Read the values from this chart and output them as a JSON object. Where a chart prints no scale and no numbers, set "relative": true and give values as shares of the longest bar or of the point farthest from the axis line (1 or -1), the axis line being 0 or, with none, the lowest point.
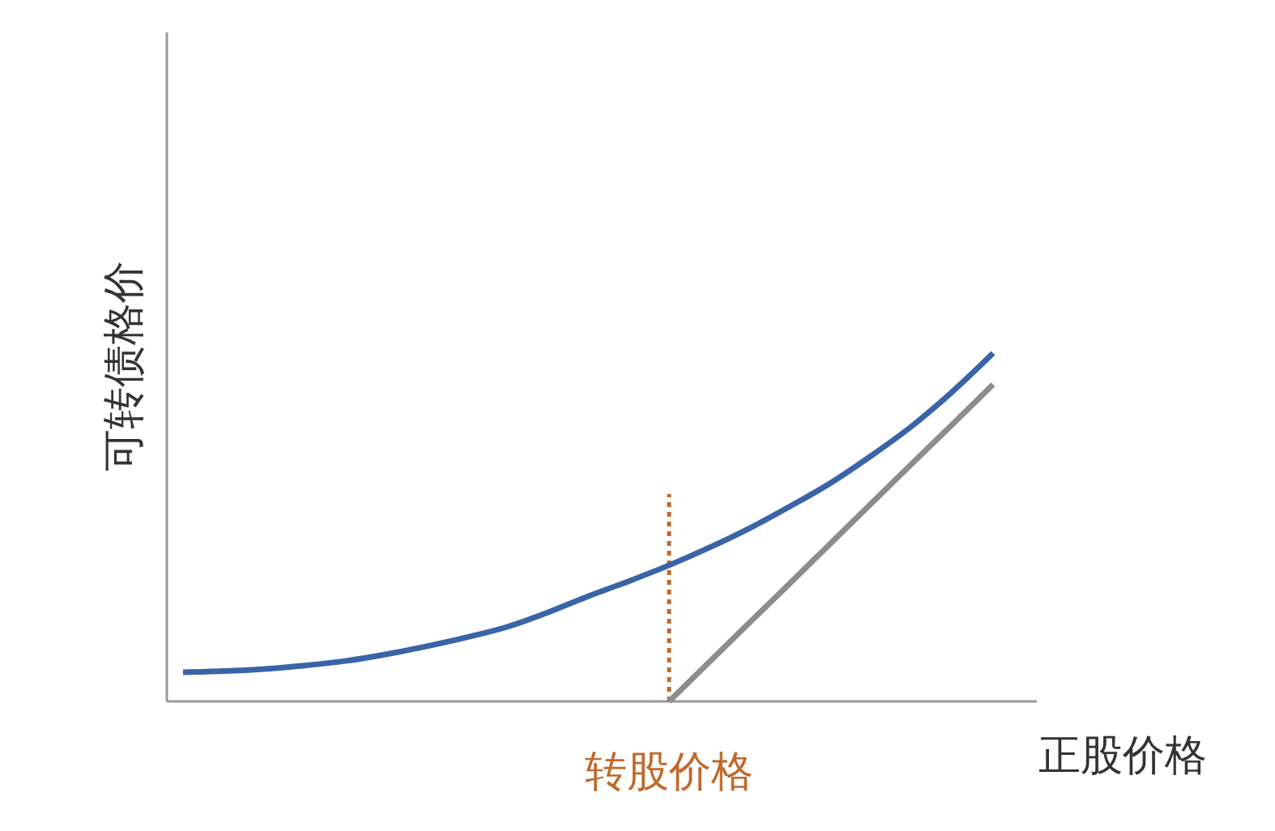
{
  "chart_data": {
    "type": "line",
    "relative": true,
    "xlabel": "正股价格",
    "ylabel": "可转债格价",
    "categories": [
      null,
      null,
      null,
      null,
      null,
      null,
      null,
      null,
      null,
      null,
      null,
      null,
      null,
      null,
      null,
      null,
      null,
      null,
      null,
      null,
      null
    ],
    "series": [
      {
        "color": "#3a64a8",
        "values": [
          0.084,
          0.087,
          0.093,
          0.103,
          0.116,
          0.135,
          0.158,
          0.184,
          0.214,
          0.255,
          0.302,
          0.345,
          0.391,
          0.442,
          0.498,
          0.561,
          0.628,
          0.706,
          0.791,
          0.89,
          1.0
        ]
      },
      {
        "color": "#8c8c8c",
        "values": [
          null,
          null,
          null,
          null,
          null,
          null,
          null,
          null,
          null,
          null,
          null,
          null,
          0,
          0.114,
          0.228,
          0.341,
          0.455,
          0.569,
          0.683,
          0.796,
          0.91
        ]
      }
    ],
    "annotations": [
      "转股价格"
    ],
    "marker": "none",
    "line_style": "solid"
  }
}
